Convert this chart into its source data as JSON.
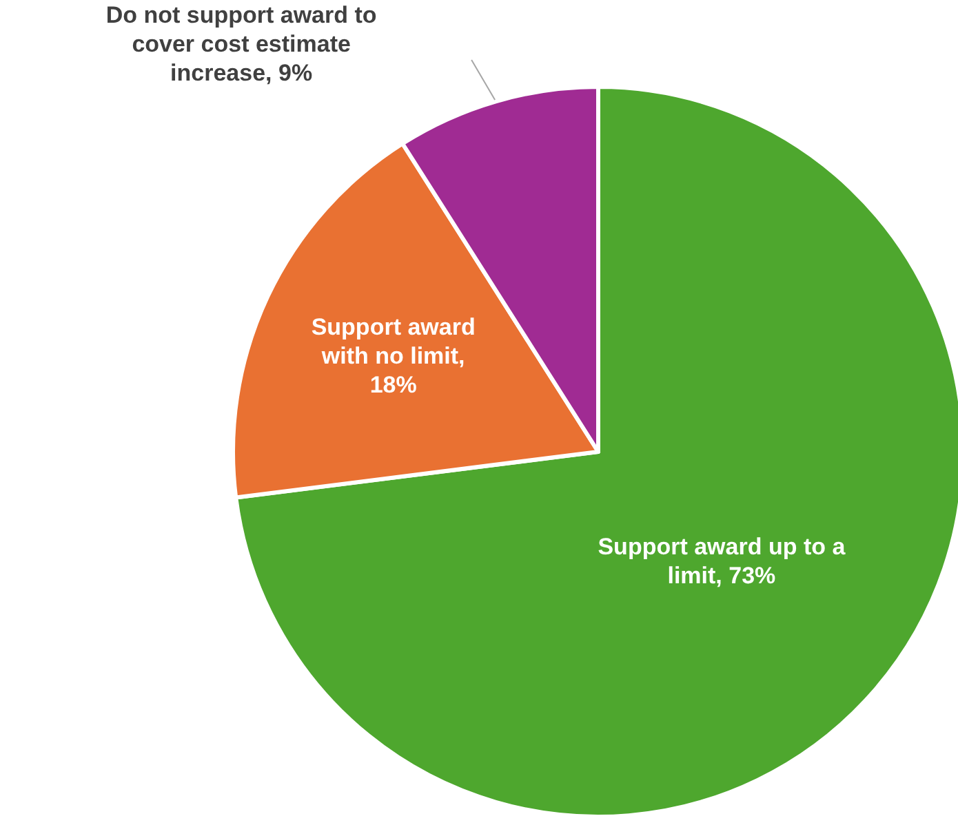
{
  "chart_data": {
    "type": "pie",
    "categories": [
      "Support award up to a limit, 73%",
      "Support award with no limit, 18%",
      "Do not support award to cover cost estimate increase, 9%"
    ],
    "values": [
      73,
      18,
      9
    ],
    "colors": [
      "#4ea72e",
      "#e97132",
      "#a02b93"
    ]
  }
}
